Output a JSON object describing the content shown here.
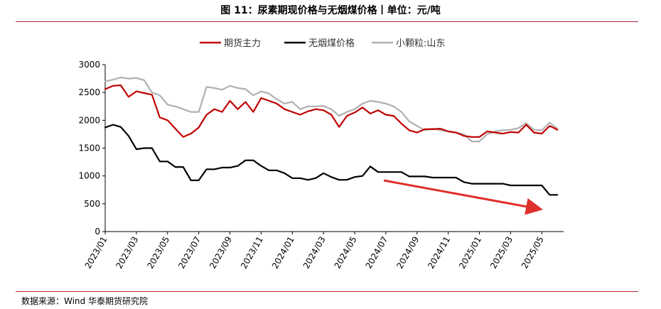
{
  "title": "图 11：尿素期现价格与无烟煤价格丨单位：元/吨",
  "source": "数据来源：Wind  华泰期货研究院",
  "chart_data": {
    "type": "line",
    "title": "图 11：尿素期现价格与无烟煤价格丨单位：元/吨",
    "ylabel": "",
    "xlabel": "",
    "ylim": [
      0,
      3000
    ],
    "yticks": [
      0,
      500,
      1000,
      1500,
      2000,
      2500,
      3000
    ],
    "xticks": [
      "2023/01",
      "2023/03",
      "2023/05",
      "2023/07",
      "2023/09",
      "2023/11",
      "2024/01",
      "2024/03",
      "2024/05",
      "2024/07",
      "2024/09",
      "2024/11",
      "2025/01",
      "2025/03",
      "2025/05"
    ],
    "legend_position": "top",
    "grid": false,
    "annotation": "red arrow indicating downward trend of 无烟煤价格 (2024/06 → 2025/05)",
    "series": [
      {
        "name": "期货主力",
        "color": "#c00000",
        "points": [
          [
            "2023/01",
            2560
          ],
          [
            "2023/01.5",
            2620
          ],
          [
            "2023/02",
            2630
          ],
          [
            "2023/02.5",
            2420
          ],
          [
            "2023/03",
            2520
          ],
          [
            "2023/03.5",
            2490
          ],
          [
            "2023/04",
            2460
          ],
          [
            "2023/04.5",
            2050
          ],
          [
            "2023/05",
            2000
          ],
          [
            "2023/05.5",
            1850
          ],
          [
            "2023/06",
            1700
          ],
          [
            "2023/06.5",
            1760
          ],
          [
            "2023/07",
            1870
          ],
          [
            "2023/07.5",
            2100
          ],
          [
            "2023/08",
            2200
          ],
          [
            "2023/08.5",
            2150
          ],
          [
            "2023/09",
            2350
          ],
          [
            "2023/09.5",
            2200
          ],
          [
            "2023/10",
            2330
          ],
          [
            "2023/10.5",
            2150
          ],
          [
            "2023/11",
            2400
          ],
          [
            "2023/11.5",
            2350
          ],
          [
            "2023/12",
            2300
          ],
          [
            "2023/12.5",
            2200
          ],
          [
            "2024/01",
            2150
          ],
          [
            "2024/01.5",
            2100
          ],
          [
            "2024/02",
            2160
          ],
          [
            "2024/02.5",
            2200
          ],
          [
            "2024/03",
            2180
          ],
          [
            "2024/03.5",
            2100
          ],
          [
            "2024/04",
            1880
          ],
          [
            "2024/04.5",
            2080
          ],
          [
            "2024/05",
            2140
          ],
          [
            "2024/05.5",
            2230
          ],
          [
            "2024/06",
            2120
          ],
          [
            "2024/06.5",
            2180
          ],
          [
            "2024/07",
            2100
          ],
          [
            "2024/07.5",
            2080
          ],
          [
            "2024/08",
            1940
          ],
          [
            "2024/08.5",
            1820
          ],
          [
            "2024/09",
            1780
          ],
          [
            "2024/09.5",
            1840
          ],
          [
            "2024/10",
            1840
          ],
          [
            "2024/10.5",
            1850
          ],
          [
            "2024/11",
            1800
          ],
          [
            "2024/11.5",
            1780
          ],
          [
            "2024/12",
            1720
          ],
          [
            "2024/12.5",
            1700
          ],
          [
            "2025/01",
            1700
          ],
          [
            "2025/01.5",
            1800
          ],
          [
            "2025/02",
            1780
          ],
          [
            "2025/02.5",
            1760
          ],
          [
            "2025/03",
            1790
          ],
          [
            "2025/03.5",
            1780
          ],
          [
            "2025/04",
            1920
          ],
          [
            "2025/04.5",
            1780
          ],
          [
            "2025/05",
            1760
          ],
          [
            "2025/05.5",
            1900
          ],
          [
            "2025/06",
            1830
          ]
        ]
      },
      {
        "name": "无烟煤价格",
        "color": "#000000",
        "points": [
          [
            "2023/01",
            1870
          ],
          [
            "2023/01.5",
            1920
          ],
          [
            "2023/02",
            1880
          ],
          [
            "2023/02.5",
            1720
          ],
          [
            "2023/03",
            1480
          ],
          [
            "2023/03.5",
            1500
          ],
          [
            "2023/04",
            1500
          ],
          [
            "2023/04.5",
            1260
          ],
          [
            "2023/05",
            1260
          ],
          [
            "2023/05.5",
            1160
          ],
          [
            "2023/06",
            1160
          ],
          [
            "2023/06.5",
            920
          ],
          [
            "2023/07",
            920
          ],
          [
            "2023/07.5",
            1120
          ],
          [
            "2023/08",
            1120
          ],
          [
            "2023/08.5",
            1150
          ],
          [
            "2023/09",
            1150
          ],
          [
            "2023/09.5",
            1180
          ],
          [
            "2023/10",
            1280
          ],
          [
            "2023/10.5",
            1280
          ],
          [
            "2023/11",
            1180
          ],
          [
            "2023/11.5",
            1100
          ],
          [
            "2023/12",
            1100
          ],
          [
            "2023/12.5",
            1050
          ],
          [
            "2024/01",
            960
          ],
          [
            "2024/01.5",
            960
          ],
          [
            "2024/02",
            930
          ],
          [
            "2024/02.5",
            960
          ],
          [
            "2024/03",
            1050
          ],
          [
            "2024/03.5",
            980
          ],
          [
            "2024/04",
            930
          ],
          [
            "2024/04.5",
            930
          ],
          [
            "2024/05",
            980
          ],
          [
            "2024/05.5",
            1000
          ],
          [
            "2024/06",
            1170
          ],
          [
            "2024/06.5",
            1070
          ],
          [
            "2024/07",
            1070
          ],
          [
            "2024/07.5",
            1070
          ],
          [
            "2024/08",
            1070
          ],
          [
            "2024/08.5",
            990
          ],
          [
            "2024/09",
            990
          ],
          [
            "2024/09.5",
            990
          ],
          [
            "2024/10",
            970
          ],
          [
            "2024/10.5",
            970
          ],
          [
            "2024/11",
            970
          ],
          [
            "2024/11.5",
            970
          ],
          [
            "2024/12",
            890
          ],
          [
            "2024/12.5",
            860
          ],
          [
            "2025/01",
            860
          ],
          [
            "2025/01.5",
            860
          ],
          [
            "2025/02",
            860
          ],
          [
            "2025/02.5",
            860
          ],
          [
            "2025/03",
            830
          ],
          [
            "2025/03.5",
            830
          ],
          [
            "2025/04",
            830
          ],
          [
            "2025/04.5",
            830
          ],
          [
            "2025/05",
            830
          ],
          [
            "2025/05.5",
            660
          ],
          [
            "2025/06",
            660
          ]
        ]
      },
      {
        "name": "小颗粒:山东",
        "color": "#b0b0b0",
        "points": [
          [
            "2023/01",
            2700
          ],
          [
            "2023/01.5",
            2730
          ],
          [
            "2023/02",
            2770
          ],
          [
            "2023/02.5",
            2750
          ],
          [
            "2023/03",
            2760
          ],
          [
            "2023/03.5",
            2720
          ],
          [
            "2023/04",
            2500
          ],
          [
            "2023/04.5",
            2450
          ],
          [
            "2023/05",
            2280
          ],
          [
            "2023/05.5",
            2250
          ],
          [
            "2023/06",
            2200
          ],
          [
            "2023/06.5",
            2150
          ],
          [
            "2023/07",
            2150
          ],
          [
            "2023/07.5",
            2600
          ],
          [
            "2023/08",
            2580
          ],
          [
            "2023/08.5",
            2550
          ],
          [
            "2023/09",
            2620
          ],
          [
            "2023/09.5",
            2580
          ],
          [
            "2023/10",
            2560
          ],
          [
            "2023/10.5",
            2450
          ],
          [
            "2023/11",
            2520
          ],
          [
            "2023/11.5",
            2480
          ],
          [
            "2023/12",
            2380
          ],
          [
            "2023/12.5",
            2300
          ],
          [
            "2024/01",
            2330
          ],
          [
            "2024/01.5",
            2200
          ],
          [
            "2024/02",
            2250
          ],
          [
            "2024/02.5",
            2250
          ],
          [
            "2024/03",
            2260
          ],
          [
            "2024/03.5",
            2200
          ],
          [
            "2024/04",
            2080
          ],
          [
            "2024/04.5",
            2150
          ],
          [
            "2024/05",
            2200
          ],
          [
            "2024/05.5",
            2300
          ],
          [
            "2024/06",
            2350
          ],
          [
            "2024/06.5",
            2330
          ],
          [
            "2024/07",
            2300
          ],
          [
            "2024/07.5",
            2250
          ],
          [
            "2024/08",
            2150
          ],
          [
            "2024/08.5",
            1980
          ],
          [
            "2024/09",
            1900
          ],
          [
            "2024/09.5",
            1820
          ],
          [
            "2024/10",
            1850
          ],
          [
            "2024/10.5",
            1820
          ],
          [
            "2024/11",
            1800
          ],
          [
            "2024/11.5",
            1780
          ],
          [
            "2024/12",
            1750
          ],
          [
            "2024/12.5",
            1620
          ],
          [
            "2025/01",
            1620
          ],
          [
            "2025/01.5",
            1750
          ],
          [
            "2025/02",
            1800
          ],
          [
            "2025/02.5",
            1820
          ],
          [
            "2025/03",
            1830
          ],
          [
            "2025/03.5",
            1860
          ],
          [
            "2025/04",
            1950
          ],
          [
            "2025/04.5",
            1830
          ],
          [
            "2025/05",
            1820
          ],
          [
            "2025/05.5",
            1960
          ],
          [
            "2025/06",
            1850
          ]
        ]
      }
    ]
  }
}
